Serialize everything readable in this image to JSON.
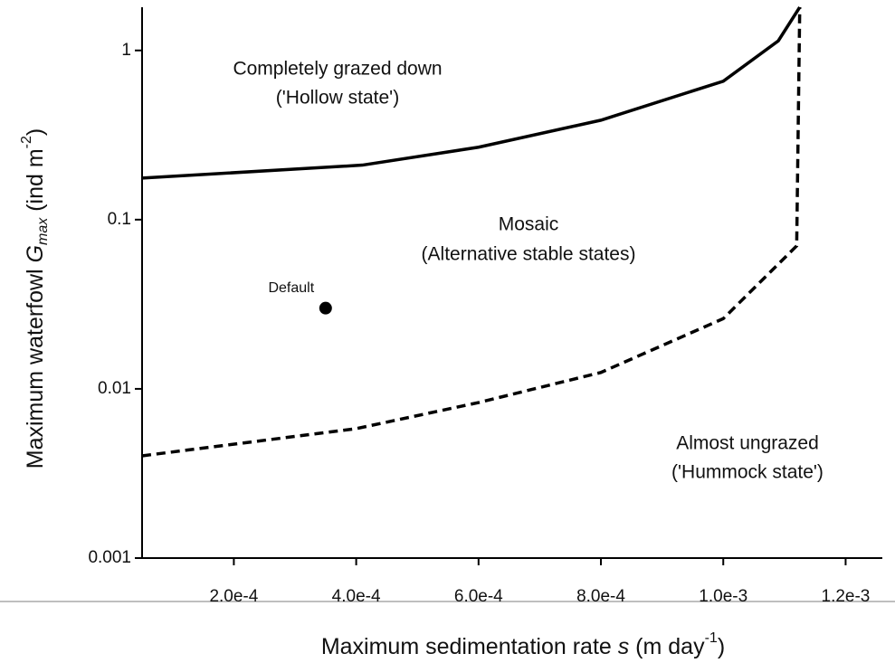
{
  "chart_data": {
    "type": "line",
    "x_label": {
      "text": "Maximum sedimentation rate ",
      "var": "s",
      "unit": " (m day",
      "sup": "-1",
      "end": ")"
    },
    "y_label": {
      "text": "Maximum waterfowl ",
      "var": "G",
      "sub": "max",
      "unit": " (ind m",
      "sup": "-2",
      "end": ")"
    },
    "xlim": [
      5e-05,
      0.00126
    ],
    "xticks": [
      {
        "value": 0.0002,
        "label": "2.0e-4"
      },
      {
        "value": 0.0004,
        "label": "4.0e-4"
      },
      {
        "value": 0.0006,
        "label": "6.0e-4"
      },
      {
        "value": 0.0008,
        "label": "8.0e-4"
      },
      {
        "value": 0.001,
        "label": "1.0e-3"
      },
      {
        "value": 0.0012,
        "label": "1.2e-3"
      }
    ],
    "ylim": [
      0.001,
      1.8
    ],
    "yticks": [
      0.001,
      0.01,
      0.1,
      1
    ],
    "y_log": true,
    "series": [
      {
        "style": "solid",
        "color": "#000000",
        "x": [
          5e-05,
          0.00041,
          0.0006,
          0.0008,
          0.001,
          0.00109,
          0.001125
        ],
        "values": [
          0.176,
          0.21,
          0.268,
          0.387,
          0.658,
          1.14,
          1.8
        ]
      },
      {
        "style": "dashed",
        "color": "#000000",
        "x": [
          5e-05,
          0.0004,
          0.0006,
          0.0008,
          0.001,
          0.00112,
          0.001125
        ],
        "values": [
          0.00402,
          0.00582,
          0.0083,
          0.0125,
          0.026,
          0.07,
          1.8
        ]
      }
    ],
    "points": [
      {
        "label": "Default",
        "x": 0.00035,
        "value": 0.03
      }
    ],
    "annotations": [
      "Completely grazed down",
      "('Hollow state')",
      "Mosaic",
      "(Alternative stable states)",
      "Almost ungrazed",
      "('Hummock state')"
    ]
  }
}
